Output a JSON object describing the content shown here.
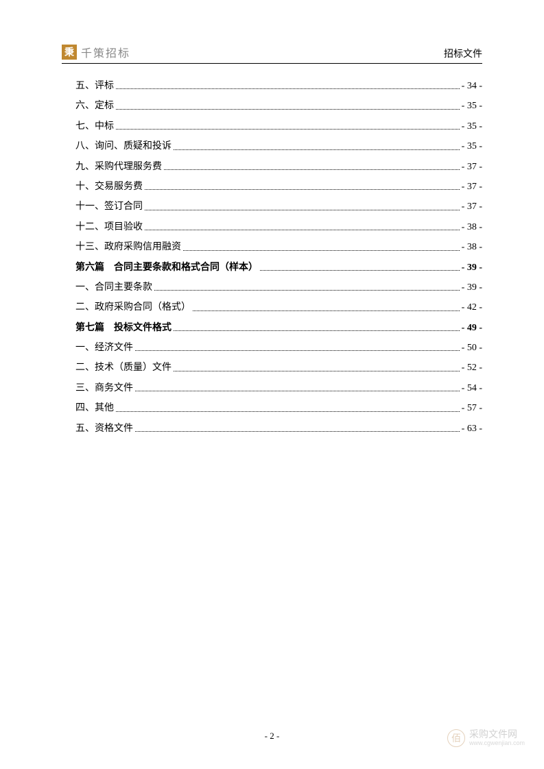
{
  "header": {
    "logo_char": "秉",
    "logo_text": "千策招标",
    "doc_type": "招标文件"
  },
  "toc": [
    {
      "label": "五、评标",
      "page": "- 34 -",
      "bold": false
    },
    {
      "label": "六、定标",
      "page": "- 35 -",
      "bold": false
    },
    {
      "label": "七、中标",
      "page": "- 35 -",
      "bold": false
    },
    {
      "label": "八、询问、质疑和投诉",
      "page": "- 35 -",
      "bold": false
    },
    {
      "label": "九、采购代理服务费",
      "page": "- 37 -",
      "bold": false
    },
    {
      "label": "十、交易服务费",
      "page": "- 37 -",
      "bold": false
    },
    {
      "label": "十一、签订合同",
      "page": "- 37 -",
      "bold": false
    },
    {
      "label": "十二、项目验收",
      "page": "- 38 -",
      "bold": false
    },
    {
      "label": "十三、政府采购信用融资",
      "page": "- 38 -",
      "bold": false
    },
    {
      "label": "第六篇　合同主要条款和格式合同（样本）",
      "page": "- 39 -",
      "bold": true
    },
    {
      "label": "一、合同主要条款",
      "page": "- 39 -",
      "bold": false
    },
    {
      "label": "二、政府采购合同（格式）",
      "page": "- 42 -",
      "bold": false
    },
    {
      "label": "第七篇　投标文件格式",
      "page": "- 49 -",
      "bold": true
    },
    {
      "label": "一、经济文件",
      "page": "- 50 -",
      "bold": false
    },
    {
      "label": "二、技术（质量）文件",
      "page": "- 52 -",
      "bold": false
    },
    {
      "label": "三、商务文件",
      "page": "- 54 -",
      "bold": false
    },
    {
      "label": "四、其他",
      "page": "- 57 -",
      "bold": false
    },
    {
      "label": "五、资格文件",
      "page": "- 63 -",
      "bold": false
    }
  ],
  "footer": {
    "page_number": "- 2 -"
  },
  "watermark": {
    "icon_char": "佰",
    "cn": "采购文件网",
    "url": "www.cgwenjian.com"
  }
}
